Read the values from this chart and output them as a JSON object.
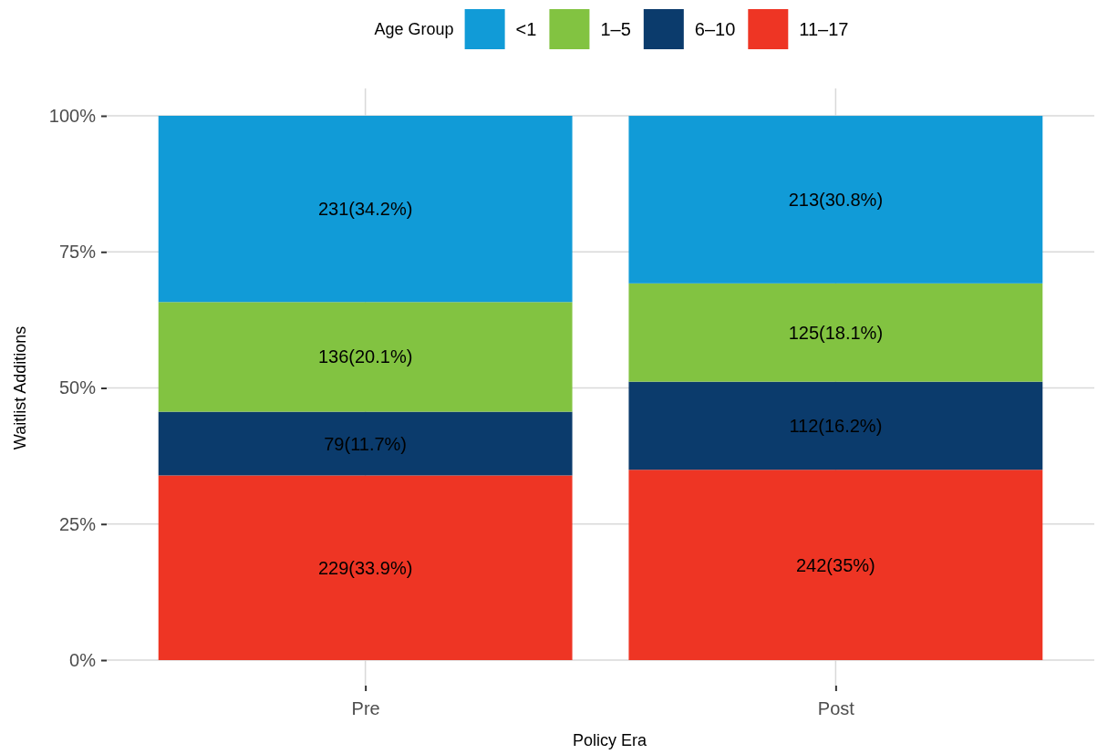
{
  "chart_data": {
    "type": "bar",
    "stacked": true,
    "xlabel": "Policy Era",
    "ylabel": "Waitlist Additions",
    "legend_title": "Age Group",
    "legend": "top",
    "categories": [
      "Pre",
      "Post"
    ],
    "series": [
      {
        "name": "11–17",
        "color": "#ee3524",
        "values": [
          33.93,
          34.97
        ],
        "value_labels": [
          "229(33.9%)",
          "242(35%)"
        ]
      },
      {
        "name": "6–10",
        "color": "#0b3b6c",
        "values": [
          11.7,
          16.18
        ],
        "value_labels": [
          "79(11.7%)",
          "112(16.2%)"
        ]
      },
      {
        "name": "1–5",
        "color": "#82c341",
        "values": [
          20.15,
          18.06
        ],
        "value_labels": [
          "136(20.1%)",
          "125(18.1%)"
        ]
      },
      {
        "name": "<1",
        "color": "#119bd7",
        "values": [
          34.22,
          30.78
        ],
        "value_labels": [
          "231(34.2%)",
          "213(30.8%)"
        ]
      }
    ],
    "ylim": [
      0,
      100
    ],
    "yticks": [
      {
        "value": 0,
        "label": "0%"
      },
      {
        "value": 25,
        "label": "25%"
      },
      {
        "value": 50,
        "label": "50%"
      },
      {
        "value": 75,
        "label": "75%"
      },
      {
        "value": 100,
        "label": "100%"
      }
    ],
    "grid": true
  }
}
